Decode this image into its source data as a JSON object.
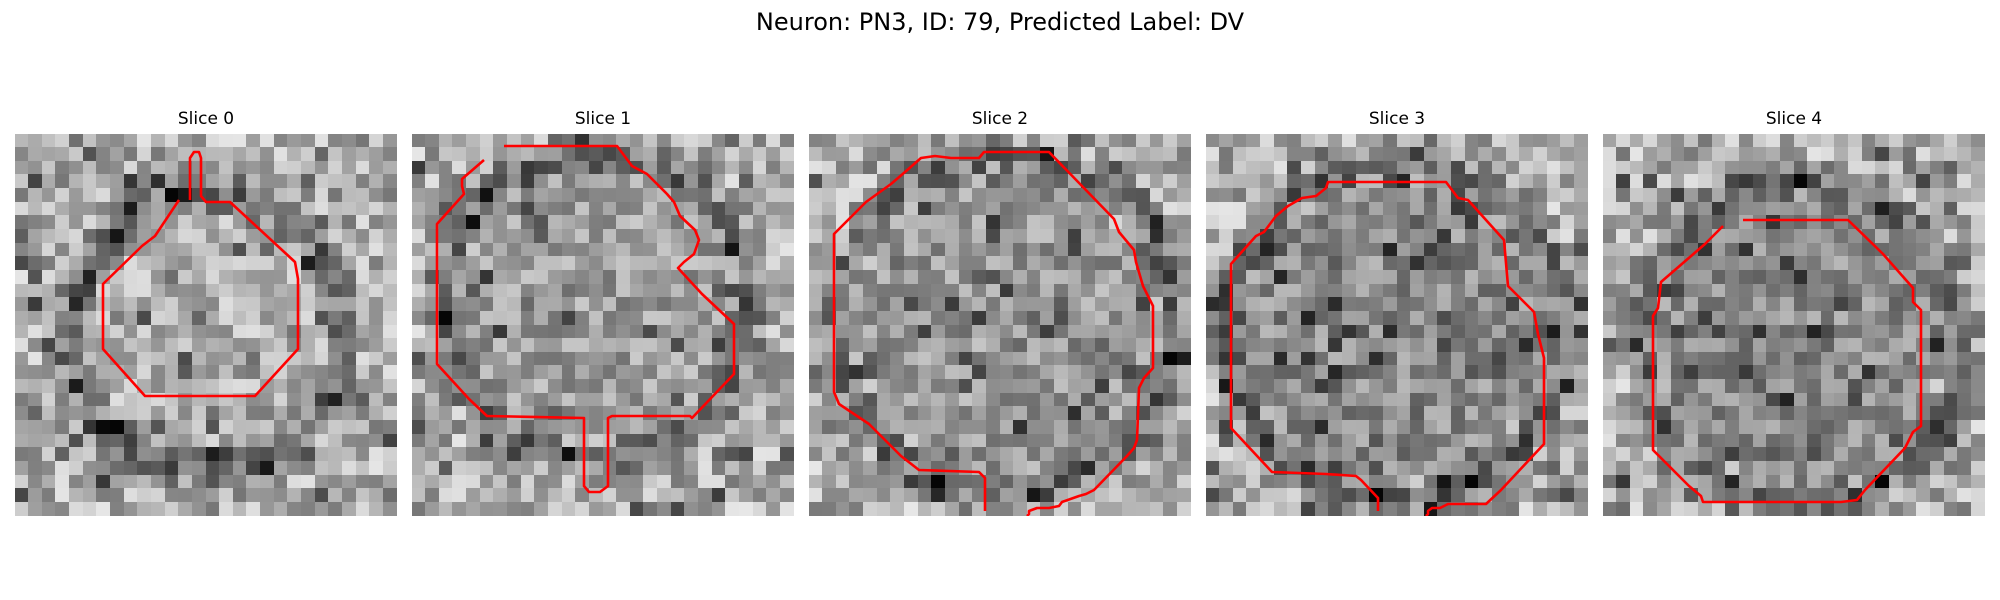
{
  "figure": {
    "title": "Neuron: PN3, ID: 79, Predicted Label: DV",
    "contour_color": "#ff0000"
  },
  "panels": [
    {
      "title": "Slice 0"
    },
    {
      "title": "Slice 1"
    },
    {
      "title": "Slice 2"
    },
    {
      "title": "Slice 3"
    },
    {
      "title": "Slice 4"
    }
  ]
}
